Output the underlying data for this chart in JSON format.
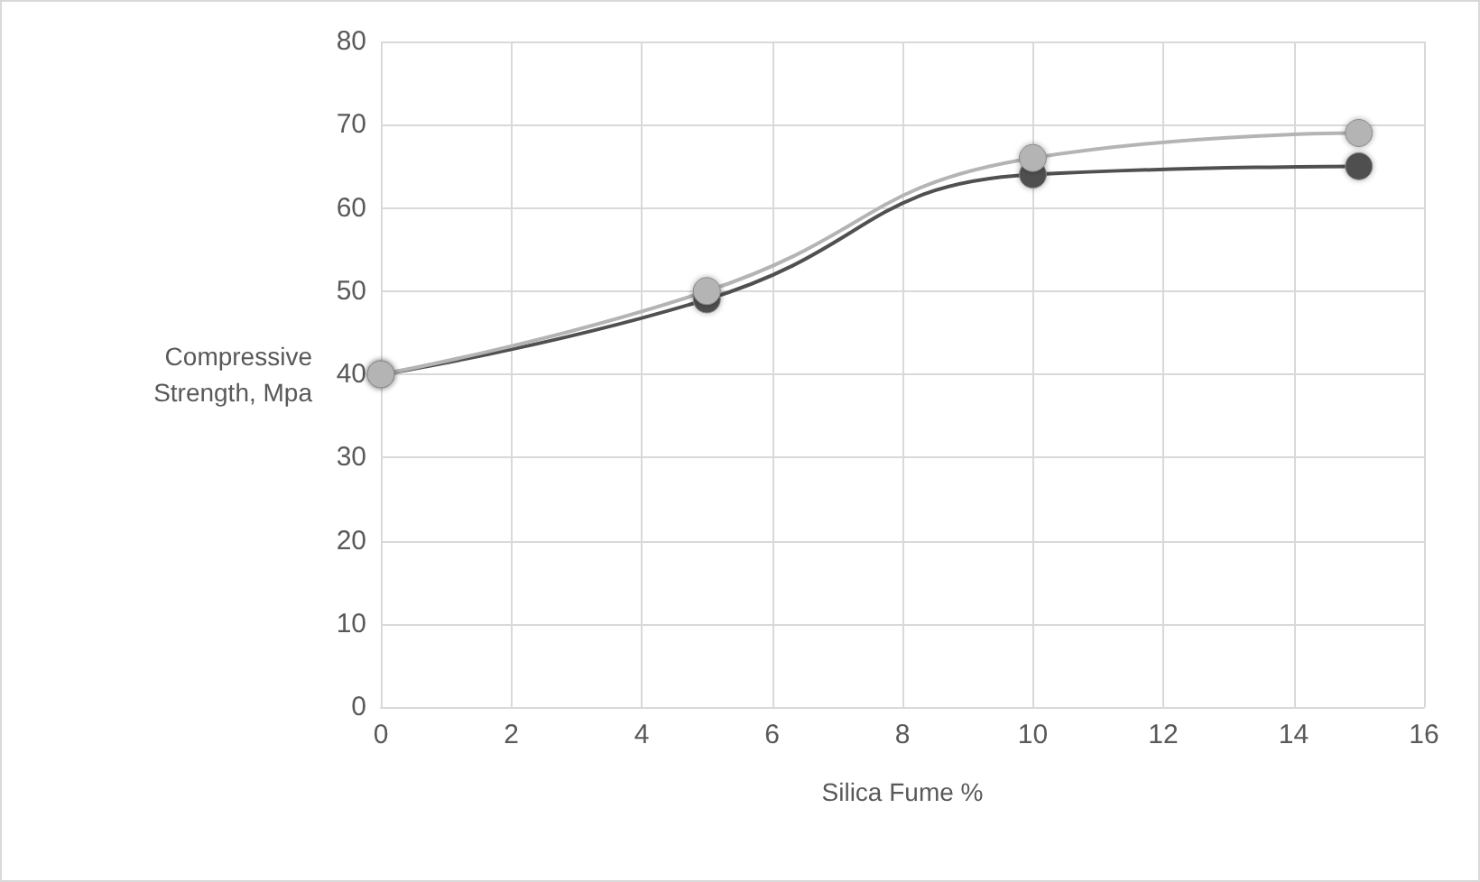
{
  "chart_data": {
    "type": "line",
    "xlabel": "Silica Fume %",
    "ylabel": "Compressive\nStrength, Mpa",
    "xlim": [
      0,
      16
    ],
    "xticks": [
      0,
      2,
      4,
      6,
      8,
      10,
      12,
      14,
      16
    ],
    "ylim": [
      0,
      80
    ],
    "yticks": [
      0,
      10,
      20,
      30,
      40,
      50,
      60,
      70,
      80
    ],
    "grid": true,
    "marker": "circle",
    "line_style": "solid",
    "series": [
      {
        "color": "#505050",
        "x": [
          0,
          5,
          10,
          15
        ],
        "values": [
          40,
          49,
          64,
          65
        ]
      },
      {
        "color": "#b4b4b4",
        "x": [
          0,
          5,
          10,
          15
        ],
        "values": [
          40,
          50,
          66,
          69
        ]
      }
    ]
  }
}
